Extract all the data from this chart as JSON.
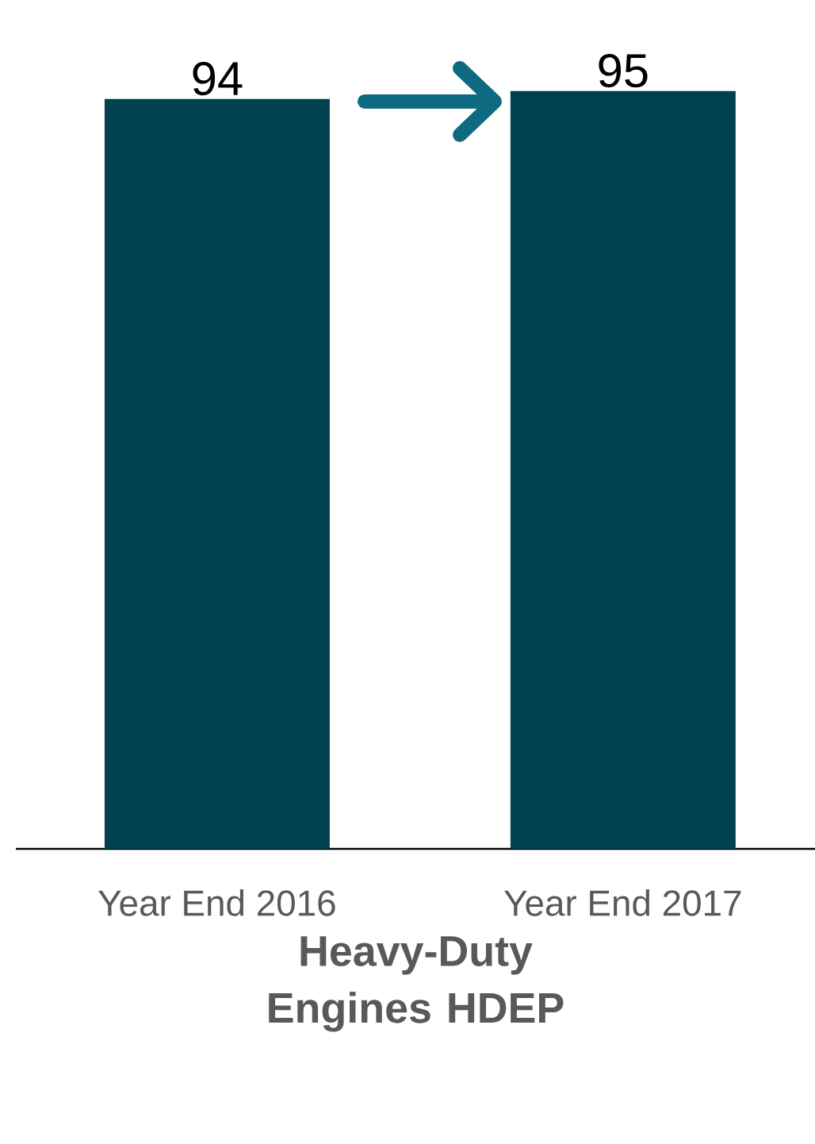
{
  "chart_data": {
    "type": "bar",
    "categories": [
      "Year End 2016",
      "Year End 2017"
    ],
    "values": [
      94,
      95
    ],
    "color": "#01414f",
    "data_labels": true,
    "xlabel": "Heavy-Duty Engines HDEP"
  }
}
